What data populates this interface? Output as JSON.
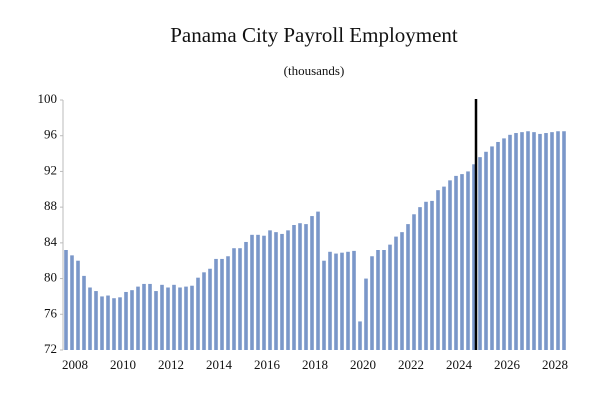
{
  "chart_data": {
    "type": "bar",
    "title": "Panama City Payroll Employment",
    "subtitle": "(thousands)",
    "categories": [
      "2008",
      null,
      null,
      null,
      null,
      null,
      null,
      null,
      "2010",
      null,
      null,
      null,
      null,
      null,
      null,
      null,
      "2012",
      null,
      null,
      null,
      null,
      null,
      null,
      null,
      "2014",
      null,
      null,
      null,
      null,
      null,
      null,
      null,
      "2016",
      null,
      null,
      null,
      null,
      null,
      null,
      null,
      "2018",
      null,
      null,
      null,
      null,
      null,
      null,
      null,
      "2020",
      null,
      null,
      null,
      null,
      null,
      null,
      null,
      "2022",
      null,
      null,
      null,
      null,
      null,
      null,
      null,
      "2024",
      null,
      null,
      null,
      null,
      null,
      null,
      null,
      "2026",
      null,
      null,
      null,
      null,
      null,
      null,
      null,
      "2028",
      null,
      null,
      null
    ],
    "values": [
      83.2,
      82.6,
      82.0,
      80.3,
      79.0,
      78.6,
      78.0,
      78.1,
      77.8,
      77.9,
      78.5,
      78.7,
      79.1,
      79.4,
      79.4,
      78.6,
      79.3,
      79.0,
      79.3,
      79.0,
      79.1,
      79.2,
      80.1,
      80.7,
      81.1,
      82.2,
      82.2,
      82.5,
      83.4,
      83.4,
      84.1,
      84.9,
      84.9,
      84.8,
      85.4,
      85.2,
      85.0,
      85.4,
      86.0,
      86.2,
      86.1,
      87.0,
      87.5,
      82.0,
      83.0,
      82.8,
      82.9,
      83.0,
      83.1,
      75.2,
      80.0,
      82.5,
      83.2,
      83.2,
      83.8,
      84.7,
      85.2,
      86.1,
      87.2,
      88.0,
      88.6,
      88.7,
      89.9,
      90.3,
      91.0,
      91.5,
      91.7,
      92.0,
      92.8,
      93.6,
      94.2,
      94.8,
      95.3,
      95.7,
      96.1,
      96.3,
      96.4,
      96.5,
      96.4,
      96.2,
      96.3,
      96.4,
      96.5,
      96.5
    ],
    "color": "#7b97c9",
    "ylim": [
      72,
      100
    ],
    "yticks": [
      72,
      76,
      80,
      84,
      88,
      92,
      96,
      100
    ],
    "grid": false
  }
}
